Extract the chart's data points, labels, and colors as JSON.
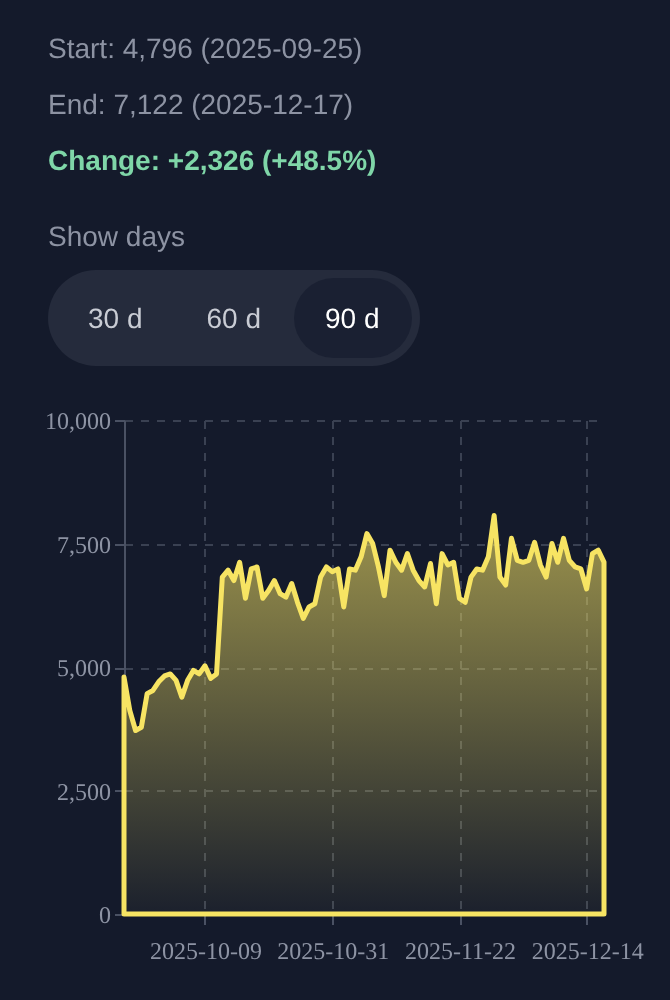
{
  "chart_data": {
    "type": "area",
    "annotations": [
      "Start: 4,796 (2025-09-25)",
      "End: 7,122 (2025-12-17)",
      "Change: +2,326 (+48.5%)",
      "Show days",
      "30 d",
      "60 d",
      "90 d"
    ],
    "x": [
      "2025-09-25",
      "2025-09-26",
      "2025-09-27",
      "2025-09-28",
      "2025-09-29",
      "2025-09-30",
      "2025-10-01",
      "2025-10-02",
      "2025-10-03",
      "2025-10-04",
      "2025-10-05",
      "2025-10-06",
      "2025-10-07",
      "2025-10-08",
      "2025-10-09",
      "2025-10-10",
      "2025-10-11",
      "2025-10-12",
      "2025-10-13",
      "2025-10-14",
      "2025-10-15",
      "2025-10-16",
      "2025-10-17",
      "2025-10-18",
      "2025-10-19",
      "2025-10-20",
      "2025-10-21",
      "2025-10-22",
      "2025-10-23",
      "2025-10-24",
      "2025-10-25",
      "2025-10-26",
      "2025-10-27",
      "2025-10-28",
      "2025-10-29",
      "2025-10-30",
      "2025-10-31",
      "2025-11-01",
      "2025-11-02",
      "2025-11-03",
      "2025-11-04",
      "2025-11-05",
      "2025-11-06",
      "2025-11-07",
      "2025-11-08",
      "2025-11-09",
      "2025-11-10",
      "2025-11-11",
      "2025-11-12",
      "2025-11-13",
      "2025-11-14",
      "2025-11-15",
      "2025-11-16",
      "2025-11-17",
      "2025-11-18",
      "2025-11-19",
      "2025-11-20",
      "2025-11-21",
      "2025-11-22",
      "2025-11-23",
      "2025-11-24",
      "2025-11-25",
      "2025-11-26",
      "2025-11-27",
      "2025-11-28",
      "2025-11-29",
      "2025-11-30",
      "2025-12-01",
      "2025-12-02",
      "2025-12-03",
      "2025-12-04",
      "2025-12-05",
      "2025-12-06",
      "2025-12-07",
      "2025-12-08",
      "2025-12-09",
      "2025-12-10",
      "2025-12-11",
      "2025-12-12",
      "2025-12-13",
      "2025-12-14",
      "2025-12-15",
      "2025-12-16",
      "2025-12-17"
    ],
    "series": [
      {
        "color": "#f7e463",
        "values": [
          4796,
          4120,
          3715,
          3780,
          4460,
          4525,
          4700,
          4820,
          4860,
          4730,
          4390,
          4730,
          4930,
          4860,
          5025,
          4770,
          4860,
          6820,
          6960,
          6750,
          7120,
          6390,
          6985,
          7025,
          6390,
          6550,
          6750,
          6485,
          6415,
          6690,
          6310,
          5985,
          6215,
          6280,
          6820,
          7025,
          6930,
          6985,
          6215,
          6985,
          6960,
          7230,
          7700,
          7500,
          7025,
          6445,
          7365,
          7120,
          6960,
          7295,
          6960,
          6750,
          6620,
          7095,
          6280,
          7295,
          7065,
          7120,
          6390,
          6310,
          6820,
          6985,
          6960,
          7230,
          8065,
          6820,
          6660,
          7605,
          7160,
          7120,
          7160,
          7525,
          7065,
          6820,
          7500,
          7120,
          7605,
          7160,
          7025,
          6985,
          6580,
          7295,
          7365,
          7122
        ]
      }
    ],
    "xlim": [
      "2025-09-25",
      "2025-12-17"
    ],
    "xticks": [
      "2025-10-09",
      "2025-10-31",
      "2025-11-22",
      "2025-12-14"
    ],
    "ylim": [
      0,
      10000
    ],
    "yticks": [
      {
        "value": 0,
        "label": "0"
      },
      {
        "value": 2500,
        "label": "2,500"
      },
      {
        "value": 5000,
        "label": "5,000"
      },
      {
        "value": 7500,
        "label": "7,500"
      },
      {
        "value": 10000,
        "label": "10,000"
      }
    ],
    "grid": true
  }
}
